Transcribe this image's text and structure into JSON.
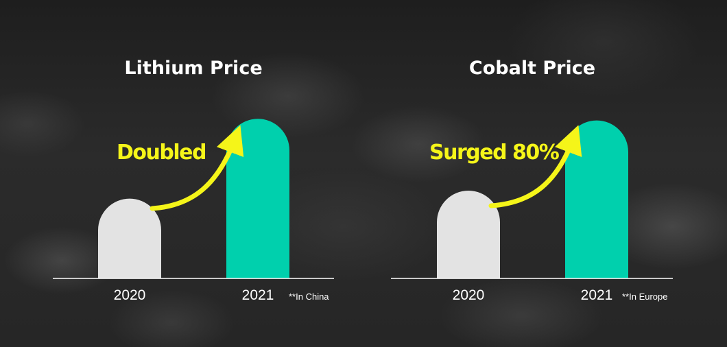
{
  "colors": {
    "bar_2020": "#e3e3e3",
    "bar_2021": "#00d0ad",
    "arrow": "#f5f519",
    "axis": "#ffffff",
    "text": "#ffffff"
  },
  "chart_data": [
    {
      "type": "bar",
      "title": "Lithium Price",
      "categories": [
        "2020",
        "2021"
      ],
      "values": [
        1,
        2
      ],
      "ylim": [
        0,
        2.2
      ],
      "annotation": "Doubled",
      "note": "**In China",
      "grid": false
    },
    {
      "type": "bar",
      "title": "Cobalt Price",
      "categories": [
        "2020",
        "2021"
      ],
      "values": [
        1,
        1.8
      ],
      "ylim": [
        0,
        2.0
      ],
      "annotation": "Surged 80%",
      "note": "**In Europe",
      "grid": false
    }
  ]
}
